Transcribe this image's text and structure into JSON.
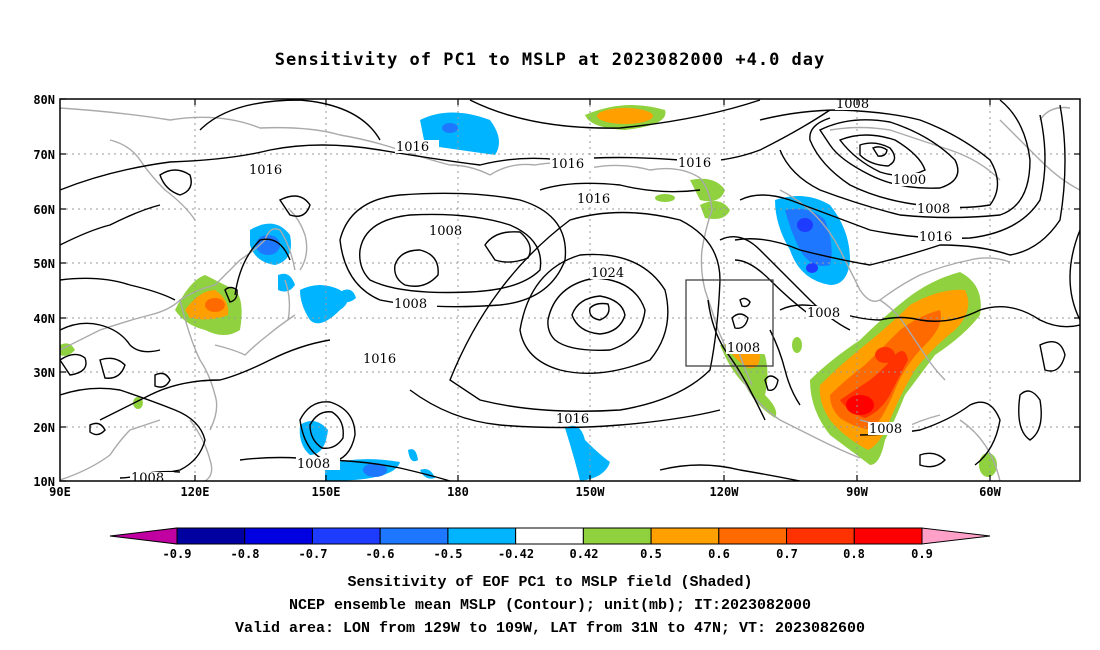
{
  "title": "Sensitivity of PC1 to MSLP at 2023082000 +4.0 day",
  "map": {
    "lat_labels": [
      "80N",
      "70N",
      "60N",
      "50N",
      "40N",
      "30N",
      "20N",
      "10N"
    ],
    "lon_labels": [
      "90E",
      "120E",
      "150E",
      "180",
      "150W",
      "120W",
      "90W",
      "60W"
    ],
    "contour_labels": [
      {
        "text": "1008"
      },
      {
        "text": "1016"
      },
      {
        "text": "1016"
      },
      {
        "text": "1016"
      },
      {
        "text": "1016"
      },
      {
        "text": "1000"
      },
      {
        "text": "1008"
      },
      {
        "text": "1016"
      },
      {
        "text": "1008"
      },
      {
        "text": "1008"
      },
      {
        "text": "1016"
      },
      {
        "text": "1024"
      },
      {
        "text": "1008"
      },
      {
        "text": "1008"
      },
      {
        "text": "1016"
      },
      {
        "text": "1008"
      },
      {
        "text": "1016"
      },
      {
        "text": "1008"
      },
      {
        "text": "1008"
      }
    ]
  },
  "colorbar": {
    "labels": [
      "-0.9",
      "-0.8",
      "-0.7",
      "-0.6",
      "-0.5",
      "-0.42",
      "0.42",
      "0.5",
      "0.6",
      "0.7",
      "0.8",
      "0.9"
    ],
    "colors": [
      "#0000a0",
      "#0000e0",
      "#1e3cff",
      "#1e78ff",
      "#00b4ff",
      "#ffffff",
      "#8fd13f",
      "#ffa000",
      "#ff6a00",
      "#ff3200",
      "#ff0000"
    ],
    "low_end_color": "#c000a0",
    "high_end_color": "#ffa0c8"
  },
  "captions": {
    "line1": "Sensitivity of EOF PC1 to MSLP field (Shaded)",
    "line2": "NCEP ensemble mean MSLP (Contour); unit(mb); IT:2023082000",
    "line3": "Valid area: LON from 129W to 109W, LAT from 31N to 47N; VT: 2023082600"
  }
}
